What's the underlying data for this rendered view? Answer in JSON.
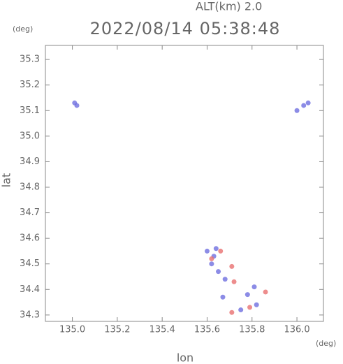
{
  "chart_data": {
    "type": "scatter",
    "title": "2022/08/14 05:38:48",
    "subtitle": "ALT(km) 2.0",
    "x_label": "lon",
    "y_label": "lat",
    "x_unit": "(deg)",
    "y_unit": "(deg)",
    "xlim": [
      134.88,
      136.118
    ],
    "ylim": [
      34.275,
      35.355
    ],
    "xticks": [
      {
        "value": 135,
        "label": "135.0"
      },
      135.2,
      135.4,
      135.6,
      135.8,
      {
        "value": 136,
        "label": "136.0"
      }
    ],
    "yticks": [
      34.3,
      34.4,
      34.5,
      34.6,
      34.7,
      34.8,
      34.9,
      {
        "value": 35,
        "label": "35.0"
      },
      35.1,
      35.2,
      35.3
    ],
    "series": [
      {
        "color": "#6f6fe0",
        "x": [
          135.01,
          135.02,
          136.05,
          136.03,
          136.0,
          135.6,
          135.63,
          135.65,
          135.68,
          135.67,
          135.75,
          135.78,
          135.82,
          135.81,
          135.62,
          135.64
        ],
        "values": [
          35.13,
          35.12,
          35.13,
          35.12,
          35.1,
          34.55,
          34.53,
          34.47,
          34.44,
          34.37,
          34.32,
          34.38,
          34.34,
          34.41,
          34.5,
          34.56
        ]
      },
      {
        "color": "#e87070",
        "x": [
          135.62,
          135.71,
          135.72,
          135.86,
          135.79,
          135.71,
          135.66
        ],
        "values": [
          34.52,
          34.49,
          34.43,
          34.39,
          34.33,
          34.31,
          34.55
        ]
      }
    ]
  }
}
